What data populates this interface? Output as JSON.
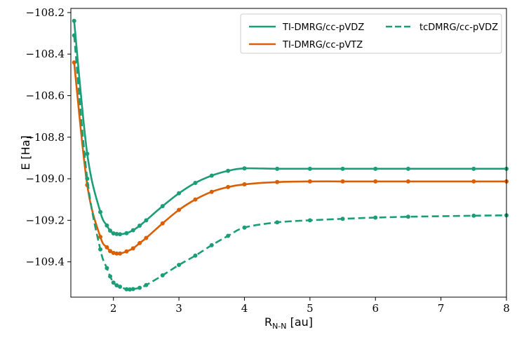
{
  "chart_data": {
    "type": "line",
    "title": "",
    "xlabel": {
      "main": "R",
      "sub": "N-N",
      "unit": " [au]"
    },
    "ylabel": "E [Ha]",
    "xlim": [
      1.35,
      8.0
    ],
    "ylim": [
      -109.57,
      -108.18
    ],
    "xticks": [
      2,
      3,
      4,
      5,
      6,
      7,
      8
    ],
    "yticks": [
      -108.2,
      -108.4,
      -108.6,
      -108.8,
      -109.0,
      -109.2,
      -109.4
    ],
    "ytick_labels": [
      "−108.2",
      "−108.4",
      "−108.6",
      "−108.8",
      "−109.0",
      "−109.2",
      "−109.4"
    ],
    "grid": false,
    "legend_position": "top-right",
    "series": [
      {
        "name": "TI-DMRG/cc-pVDZ",
        "color": "#1b9e77",
        "style": "solid",
        "x": [
          1.4,
          1.6,
          1.8,
          1.9,
          1.95,
          2.0,
          2.05,
          2.1,
          2.2,
          2.3,
          2.4,
          2.5,
          2.75,
          3.0,
          3.25,
          3.5,
          3.75,
          4.0,
          4.5,
          5.0,
          5.5,
          6.0,
          6.5,
          7.5,
          8.0
        ],
        "y": [
          -108.24,
          -108.88,
          -109.16,
          -109.225,
          -109.25,
          -109.263,
          -109.266,
          -109.267,
          -109.262,
          -109.248,
          -109.226,
          -109.2,
          -109.132,
          -109.07,
          -109.02,
          -108.985,
          -108.962,
          -108.95,
          -108.952,
          -108.952,
          -108.952,
          -108.952,
          -108.952,
          -108.952,
          -108.952
        ]
      },
      {
        "name": "TI-DMRG/cc-pVTZ",
        "color": "#d95f02",
        "style": "solid",
        "x": [
          1.4,
          1.6,
          1.8,
          1.9,
          1.95,
          2.0,
          2.05,
          2.1,
          2.2,
          2.3,
          2.4,
          2.5,
          2.75,
          3.0,
          3.25,
          3.5,
          3.75,
          4.0,
          4.5,
          5.0,
          5.5,
          6.0,
          6.5,
          7.5,
          8.0
        ],
        "y": [
          -108.44,
          -109.03,
          -109.28,
          -109.33,
          -109.348,
          -109.357,
          -109.36,
          -109.36,
          -109.35,
          -109.335,
          -109.31,
          -109.285,
          -109.215,
          -109.15,
          -109.1,
          -109.063,
          -109.04,
          -109.027,
          -109.016,
          -109.013,
          -109.013,
          -109.013,
          -109.013,
          -109.013,
          -109.013
        ]
      },
      {
        "name": "tcDMRG/cc-pVDZ",
        "color": "#1b9e77",
        "style": "dashed",
        "x": [
          1.4,
          1.6,
          1.8,
          1.9,
          1.95,
          2.0,
          2.05,
          2.1,
          2.2,
          2.25,
          2.3,
          2.4,
          2.5,
          2.75,
          3.0,
          3.25,
          3.5,
          3.75,
          4.0,
          4.5,
          5.0,
          5.5,
          6.0,
          6.5,
          7.5,
          8.0
        ],
        "y": [
          -108.31,
          -109.0,
          -109.34,
          -109.43,
          -109.47,
          -109.5,
          -109.513,
          -109.52,
          -109.532,
          -109.533,
          -109.531,
          -109.525,
          -109.512,
          -109.465,
          -109.415,
          -109.37,
          -109.32,
          -109.275,
          -109.235,
          -109.21,
          -109.2,
          -109.193,
          -109.187,
          -109.183,
          -109.178,
          -109.176
        ]
      }
    ]
  }
}
